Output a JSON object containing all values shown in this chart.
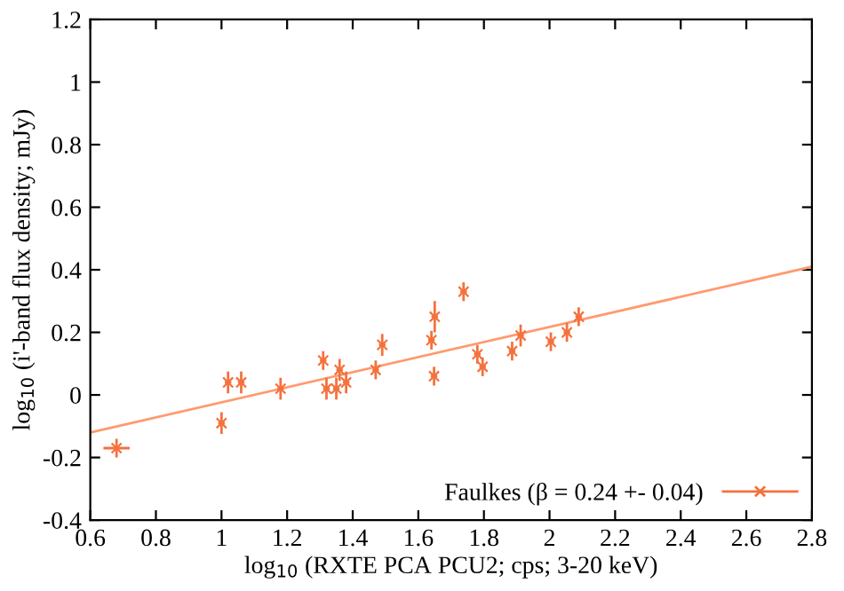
{
  "chart_data": {
    "type": "scatter",
    "xlabel": "log$_{10}$ (RXTE PCA PCU2; cps; 3-20 keV)",
    "ylabel": "log$_{10}$ (i'-band flux density; mJy)",
    "xlim": [
      0.6,
      2.8
    ],
    "ylim": [
      -0.4,
      1.2
    ],
    "xticks": [
      0.6,
      0.8,
      1,
      1.2,
      1.4,
      1.6,
      1.8,
      2,
      2.2,
      2.4,
      2.6,
      2.8
    ],
    "yticks": [
      -0.4,
      -0.2,
      0,
      0.2,
      0.4,
      0.6,
      0.8,
      1,
      1.2
    ],
    "grid": false,
    "legend": "bottom right",
    "series": [
      {
        "name": "Faulkes (β = 0.24 +- 0.04)",
        "marker": "cross",
        "color": "#f4713d",
        "x": [
          0.68,
          1.0,
          1.02,
          1.06,
          1.18,
          1.31,
          1.32,
          1.35,
          1.36,
          1.38,
          1.47,
          1.49,
          1.64,
          1.648,
          1.65,
          1.738,
          1.78,
          1.796,
          1.886,
          1.912,
          2.004,
          2.053,
          2.089
        ],
        "values": [
          -0.17,
          -0.09,
          0.04,
          0.04,
          0.02,
          0.11,
          0.02,
          0.02,
          0.08,
          0.04,
          0.08,
          0.16,
          0.175,
          0.06,
          0.25,
          0.33,
          0.13,
          0.09,
          0.14,
          0.19,
          0.17,
          0.2,
          0.25
        ],
        "errors": [
          0.03,
          0.035,
          0.035,
          0.035,
          0.035,
          0.03,
          0.035,
          0.035,
          0.035,
          0.035,
          0.03,
          0.035,
          0.03,
          0.03,
          0.05,
          0.03,
          0.03,
          0.03,
          0.03,
          0.035,
          0.03,
          0.03,
          0.03
        ],
        "xerrors": [
          0.04,
          0.01,
          0.01,
          0.01,
          0.01,
          0.01,
          0.01,
          0.01,
          0.01,
          0.01,
          0.01,
          0.01,
          0.01,
          0.01,
          0.01,
          0.01,
          0.01,
          0.01,
          0.01,
          0.01,
          0.01,
          0.01,
          0.01
        ]
      },
      {
        "type": "line",
        "color": "#ff9a6e",
        "x": [
          0.6,
          2.8
        ],
        "values": [
          -0.12,
          0.41
        ]
      }
    ]
  }
}
